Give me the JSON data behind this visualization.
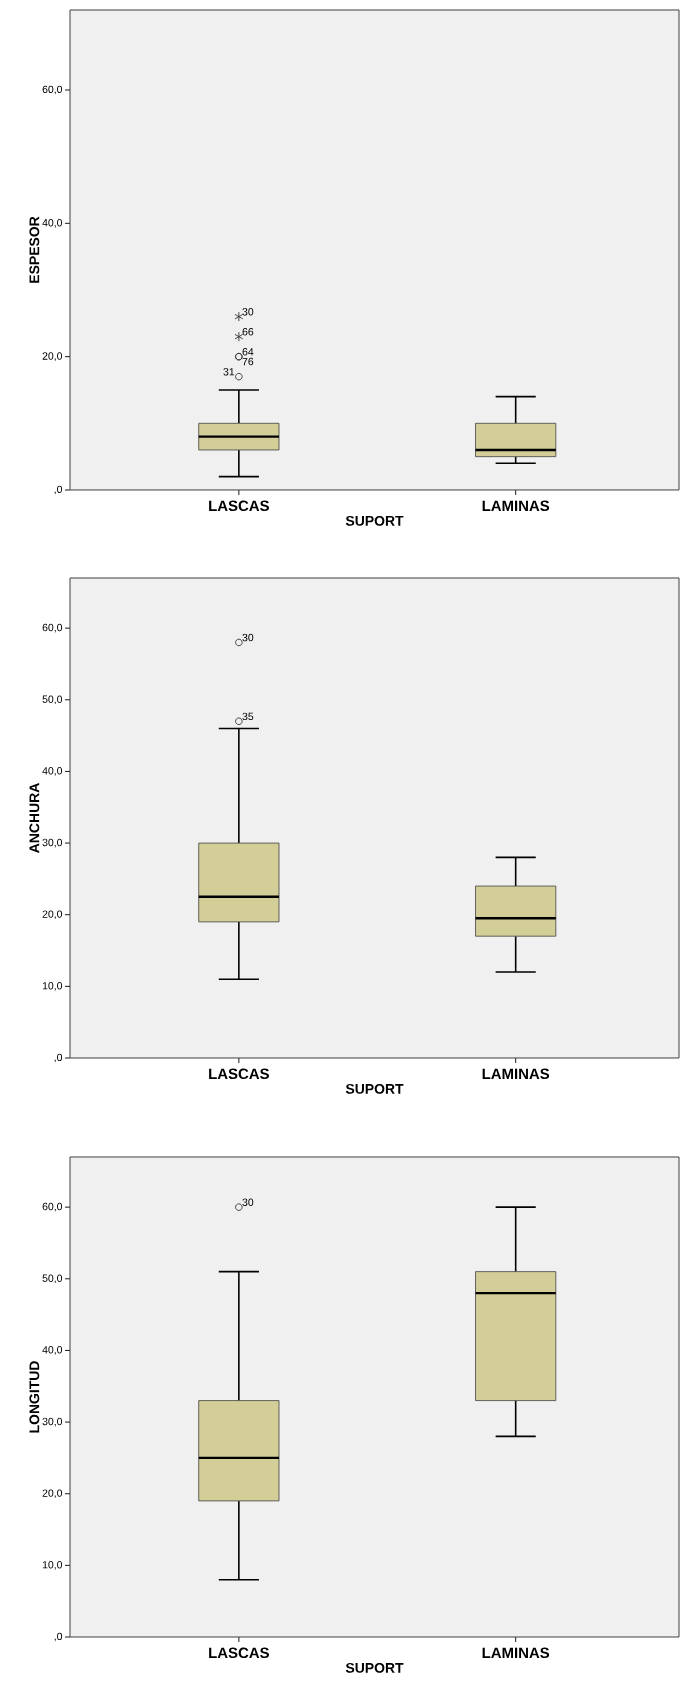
{
  "chart_data": [
    {
      "type": "box",
      "categories": [
        "LASCAS",
        "LAMINAS"
      ],
      "xlabel": "SUPORT",
      "ylabel": "ESPESOR",
      "ylim": [
        0,
        72
      ],
      "yticks": [
        {
          "value": 0,
          "label": ",0"
        },
        {
          "value": 20,
          "label": "20,0"
        },
        {
          "value": 40,
          "label": "40,0"
        },
        {
          "value": 60,
          "label": "60,0"
        }
      ],
      "series": [
        {
          "color": "#d3ce98",
          "boxes": [
            {
              "low": 2,
              "q1": 6,
              "median": 8,
              "q3": 10,
              "high": 15,
              "outliers": [
                17,
                20,
                20,
                23,
                26
              ]
            },
            {
              "low": 4,
              "q1": 5,
              "median": 6,
              "q3": 10,
              "high": 14
            }
          ]
        }
      ],
      "annotations": [
        "30",
        "66",
        "64",
        "76",
        "31"
      ]
    },
    {
      "type": "box",
      "categories": [
        "LASCAS",
        "LAMINAS"
      ],
      "xlabel": "SUPORT",
      "ylabel": "ANCHURA",
      "ylim": [
        0,
        67
      ],
      "yticks": [
        {
          "value": 0,
          "label": ",0"
        },
        {
          "value": 10,
          "label": "10,0"
        },
        {
          "value": 20,
          "label": "20,0"
        },
        {
          "value": 30,
          "label": "30,0"
        },
        {
          "value": 40,
          "label": "40,0"
        },
        {
          "value": 50,
          "label": "50,0"
        },
        {
          "value": 60,
          "label": "60,0"
        }
      ],
      "series": [
        {
          "color": "#d3ce98",
          "boxes": [
            {
              "low": 11,
              "q1": 19,
              "median": 22.5,
              "q3": 30,
              "high": 46,
              "outliers": [
                47,
                58
              ]
            },
            {
              "low": 12,
              "q1": 17,
              "median": 19.5,
              "q3": 24,
              "high": 28
            }
          ]
        }
      ],
      "annotations": [
        "30",
        "35"
      ]
    },
    {
      "type": "box",
      "categories": [
        "LASCAS",
        "LAMINAS"
      ],
      "xlabel": "SUPORT",
      "ylabel": "LONGITUD",
      "ylim": [
        0,
        67
      ],
      "yticks": [
        {
          "value": 0,
          "label": ",0"
        },
        {
          "value": 10,
          "label": "10,0"
        },
        {
          "value": 20,
          "label": "20,0"
        },
        {
          "value": 30,
          "label": "30,0"
        },
        {
          "value": 40,
          "label": "40,0"
        },
        {
          "value": 50,
          "label": "50,0"
        },
        {
          "value": 60,
          "label": "60,0"
        }
      ],
      "series": [
        {
          "color": "#d3ce98",
          "boxes": [
            {
              "low": 8,
              "q1": 19,
              "median": 25,
              "q3": 33,
              "high": 51,
              "outliers": [
                60
              ]
            },
            {
              "low": 28,
              "q1": 33,
              "median": 48,
              "q3": 51,
              "high": 60
            }
          ]
        }
      ],
      "annotations": [
        "30"
      ]
    }
  ]
}
